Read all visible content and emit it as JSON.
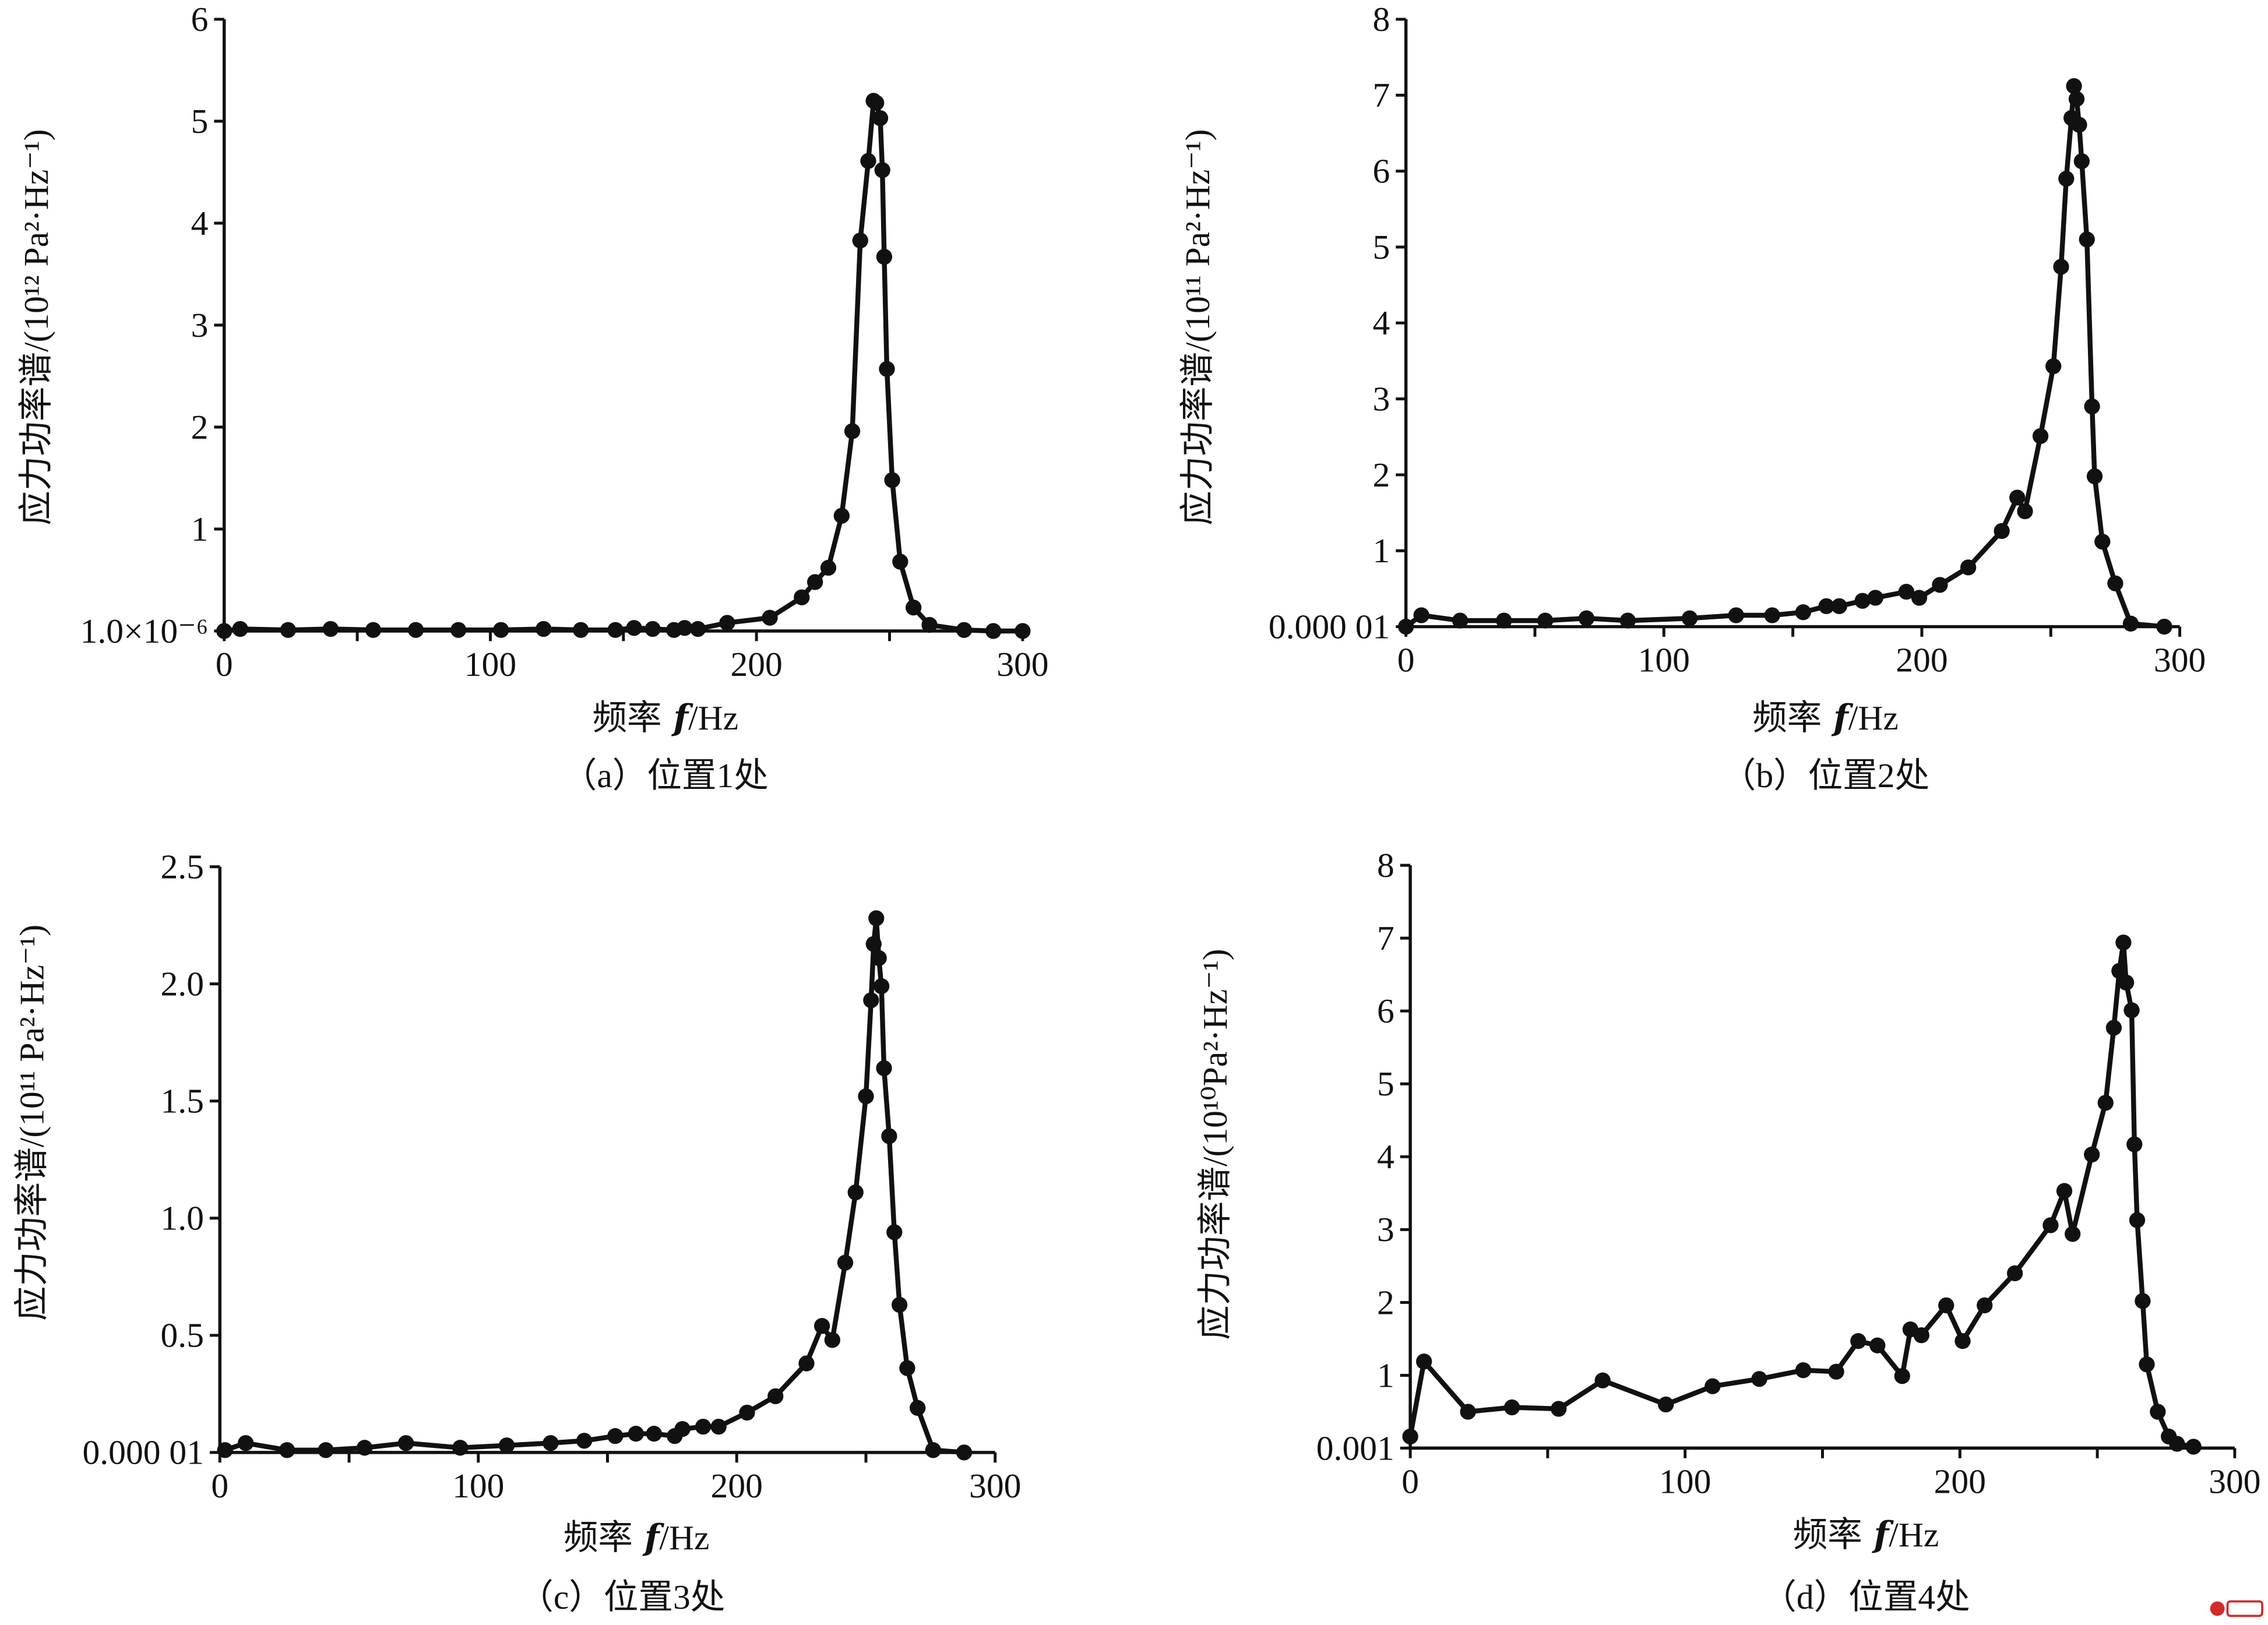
{
  "chart_data": [
    {
      "type": "line",
      "ylabel": "应力功率谱/(10¹² Pa²·Hz⁻¹)",
      "xlabel": {
        "text": "频率",
        "var": "f",
        "unit": "/Hz"
      },
      "caption": "（a）位置1处",
      "xlim": [
        0,
        300
      ],
      "ylim": [
        1e-06,
        6
      ],
      "grid": false,
      "x_ticks": [
        {
          "value": 0,
          "label": "0"
        },
        {
          "value": 100,
          "label": "100"
        },
        {
          "value": 200,
          "label": "200"
        },
        {
          "value": 300,
          "label": "300"
        }
      ],
      "y_ticks": [
        {
          "value": 1e-06,
          "label": "1.0×10⁻⁶"
        },
        {
          "value": 1,
          "label": "1"
        },
        {
          "value": 2,
          "label": "2"
        },
        {
          "value": 3,
          "label": "3"
        },
        {
          "value": 4,
          "label": "4"
        },
        {
          "value": 5,
          "label": "5"
        },
        {
          "value": 6,
          "label": "6"
        }
      ],
      "series": [
        {
          "x": [
            0,
            6,
            24,
            40,
            56,
            72,
            88,
            104,
            120,
            134,
            147,
            154,
            161,
            169,
            173,
            178,
            189,
            205,
            217,
            222,
            227,
            232,
            236,
            239,
            242,
            244,
            245,
            246.5,
            247.3,
            248,
            249,
            251,
            254,
            259,
            265,
            278,
            289,
            300
          ],
          "y": [
            0,
            0.02,
            0.01,
            0.02,
            0.01,
            0.01,
            0.01,
            0.01,
            0.02,
            0.01,
            0.01,
            0.03,
            0.02,
            0.01,
            0.03,
            0.02,
            0.08,
            0.13,
            0.33,
            0.48,
            0.62,
            1.13,
            1.96,
            3.83,
            4.61,
            5.2,
            5.18,
            5.03,
            4.52,
            3.67,
            2.57,
            1.48,
            0.68,
            0.23,
            0.06,
            0.01,
            0,
            0
          ]
        }
      ]
    },
    {
      "type": "line",
      "ylabel": "应力功率谱/(10¹¹ Pa²·Hz⁻¹)",
      "xlabel": {
        "text": "频率",
        "var": "f",
        "unit": "/Hz"
      },
      "caption": "（b）位置2处",
      "xlim": [
        0,
        300
      ],
      "ylim": [
        1e-05,
        8
      ],
      "grid": false,
      "x_ticks": [
        {
          "value": 0,
          "label": "0"
        },
        {
          "value": 100,
          "label": "100"
        },
        {
          "value": 200,
          "label": "200"
        },
        {
          "value": 300,
          "label": "300"
        }
      ],
      "y_ticks": [
        {
          "value": 1e-05,
          "label": "0.000 01"
        },
        {
          "value": 1,
          "label": "1"
        },
        {
          "value": 2,
          "label": "2"
        },
        {
          "value": 3,
          "label": "3"
        },
        {
          "value": 4,
          "label": "4"
        },
        {
          "value": 5,
          "label": "5"
        },
        {
          "value": 6,
          "label": "6"
        },
        {
          "value": 7,
          "label": "7"
        },
        {
          "value": 8,
          "label": "8"
        }
      ],
      "series": [
        {
          "x": [
            0,
            6,
            21,
            38,
            54,
            70,
            86,
            110,
            128,
            142,
            154,
            163,
            168,
            177,
            182,
            194,
            199,
            207,
            218,
            231,
            237,
            240,
            246,
            251,
            254,
            256,
            258,
            259,
            260,
            261,
            262,
            264,
            266,
            267,
            270,
            275,
            281,
            294
          ],
          "y": [
            0,
            0.15,
            0.08,
            0.08,
            0.08,
            0.11,
            0.08,
            0.11,
            0.15,
            0.15,
            0.19,
            0.27,
            0.27,
            0.34,
            0.38,
            0.46,
            0.38,
            0.55,
            0.78,
            1.26,
            1.7,
            1.52,
            2.51,
            3.43,
            4.74,
            5.9,
            6.7,
            7.12,
            6.95,
            6.61,
            6.13,
            5.1,
            2.9,
            1.98,
            1.12,
            0.57,
            0.04,
            0
          ]
        }
      ]
    },
    {
      "type": "line",
      "ylabel": "应力功率谱/(10¹¹ Pa²·Hz⁻¹)",
      "xlabel": {
        "text": "频率",
        "var": "f",
        "unit": "/Hz"
      },
      "caption": "（c）位置3处",
      "xlim": [
        0,
        300
      ],
      "ylim": [
        1e-05,
        2.5
      ],
      "grid": false,
      "x_ticks": [
        {
          "value": 0,
          "label": "0"
        },
        {
          "value": 100,
          "label": "100"
        },
        {
          "value": 200,
          "label": "200"
        },
        {
          "value": 300,
          "label": "300"
        }
      ],
      "y_ticks": [
        {
          "value": 1e-05,
          "label": "0.000 01"
        },
        {
          "value": 0.5,
          "label": "0.5"
        },
        {
          "value": 1.0,
          "label": "1.0"
        },
        {
          "value": 1.5,
          "label": "1.5"
        },
        {
          "value": 2.0,
          "label": "2.0"
        },
        {
          "value": 2.5,
          "label": "2.5"
        }
      ],
      "series": [
        {
          "x": [
            2,
            10,
            26,
            41,
            56,
            72,
            93,
            111,
            128,
            141,
            153,
            161,
            168,
            176,
            179,
            187,
            193,
            204,
            215,
            227,
            233,
            237,
            242,
            246,
            250,
            252,
            253,
            254,
            255,
            256,
            257,
            259,
            261,
            263,
            266,
            270,
            276,
            288
          ],
          "y": [
            0.01,
            0.04,
            0.01,
            0.01,
            0.02,
            0.04,
            0.02,
            0.03,
            0.04,
            0.05,
            0.07,
            0.08,
            0.08,
            0.07,
            0.1,
            0.11,
            0.11,
            0.17,
            0.24,
            0.38,
            0.54,
            0.48,
            0.81,
            1.11,
            1.52,
            1.93,
            2.17,
            2.28,
            2.11,
            1.99,
            1.64,
            1.35,
            0.94,
            0.63,
            0.36,
            0.19,
            0.01,
            0
          ]
        }
      ]
    },
    {
      "type": "line",
      "ylabel": "应力功率谱/(10¹⁰Pa²·Hz⁻¹)",
      "xlabel": {
        "text": "频率",
        "var": "f",
        "unit": "/Hz"
      },
      "caption": "（d）位置4处",
      "xlim": [
        0,
        300
      ],
      "ylim": [
        0.001,
        8
      ],
      "grid": false,
      "x_ticks": [
        {
          "value": 0,
          "label": "0"
        },
        {
          "value": 100,
          "label": "100"
        },
        {
          "value": 200,
          "label": "200"
        },
        {
          "value": 300,
          "label": "300"
        }
      ],
      "y_ticks": [
        {
          "value": 0.001,
          "label": "0.001"
        },
        {
          "value": 1,
          "label": "1"
        },
        {
          "value": 2,
          "label": "2"
        },
        {
          "value": 3,
          "label": "3"
        },
        {
          "value": 4,
          "label": "4"
        },
        {
          "value": 5,
          "label": "5"
        },
        {
          "value": 6,
          "label": "6"
        },
        {
          "value": 7,
          "label": "7"
        },
        {
          "value": 8,
          "label": "8"
        }
      ],
      "series": [
        {
          "x": [
            0,
            5,
            21,
            37,
            54,
            70,
            93,
            110,
            127,
            143,
            155,
            163,
            170,
            179,
            182,
            186,
            195,
            201,
            209,
            220,
            233,
            238,
            241,
            248,
            253,
            256,
            258,
            259.5,
            260.5,
            262.5,
            263.5,
            264.5,
            266.5,
            268,
            272,
            276,
            279,
            285
          ],
          "y": [
            0.16,
            1.19,
            0.5,
            0.56,
            0.54,
            0.93,
            0.6,
            0.85,
            0.95,
            1.07,
            1.05,
            1.47,
            1.41,
            0.99,
            1.63,
            1.55,
            1.96,
            1.47,
            1.96,
            2.4,
            3.06,
            3.53,
            2.94,
            4.03,
            4.74,
            5.77,
            6.55,
            6.94,
            6.39,
            6.01,
            4.17,
            3.13,
            2.02,
            1.15,
            0.5,
            0.16,
            0.06,
            0.02
          ]
        }
      ]
    }
  ]
}
